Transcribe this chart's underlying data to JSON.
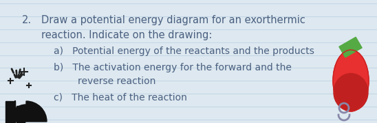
{
  "background_color": "#dde8f0",
  "line_color": "#c0d4e4",
  "text_color": "#4a6080",
  "number": "2.",
  "main_text_line1": "Draw a potential energy diagram for an exorthermic",
  "main_text_line2": "reaction. Indicate on the drawing:",
  "item_a": "a)   Potential energy of the reactants and the products",
  "item_b_line1": "b)   The activation energy for the forward and the",
  "item_b_line2": "        reverse reaction",
  "item_c": "c)   The heat of the reaction",
  "font_size_main": 10.5,
  "font_size_items": 10.0,
  "font_family": "DejaVu Sans",
  "fig_width": 5.48,
  "fig_height": 1.8,
  "dpi": 100
}
